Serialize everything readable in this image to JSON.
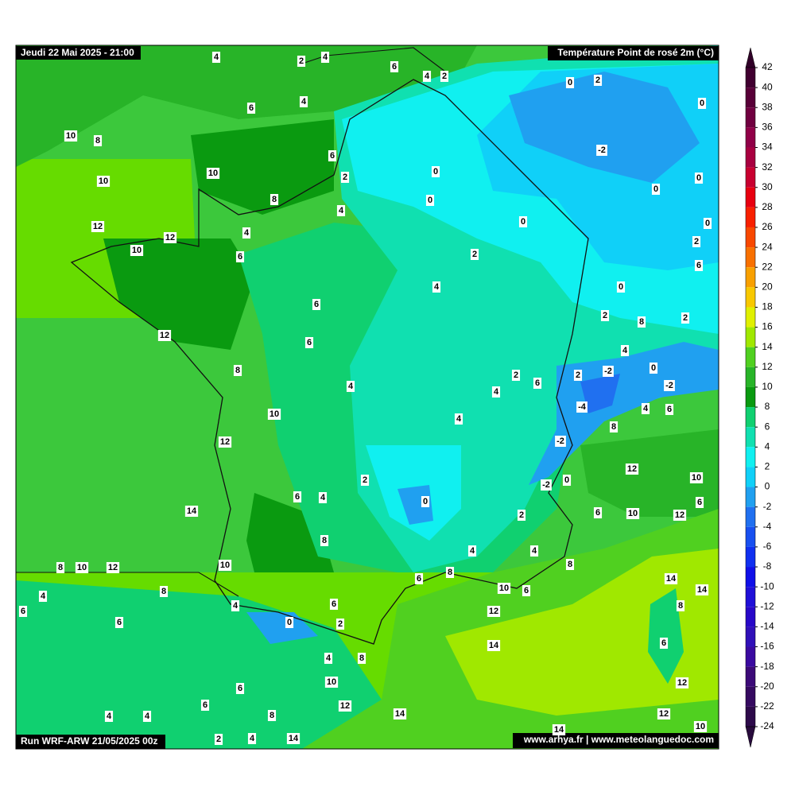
{
  "header": {
    "date": "Jeudi 22 Mai 2025 - 21:00",
    "title": "Température Point de rosé 2m (°C)"
  },
  "footer": {
    "run": "Run WRF-ARW 21/05/2025 00z",
    "source": "www.arhya.fr | www.meteolanguedoc.com"
  },
  "colorbar": {
    "ticks": [
      42,
      40,
      38,
      36,
      34,
      32,
      30,
      28,
      26,
      24,
      22,
      20,
      18,
      16,
      14,
      12,
      10,
      8,
      6,
      4,
      2,
      0,
      -2,
      -4,
      -6,
      -8,
      -10,
      -12,
      -14,
      -16,
      -18,
      -20,
      -22,
      -24
    ],
    "colors": [
      "#300028",
      "#400030",
      "#580038",
      "#700040",
      "#900048",
      "#a80040",
      "#c80030",
      "#e80010",
      "#f82000",
      "#f84800",
      "#f87000",
      "#f8a000",
      "#f8c800",
      "#e0f000",
      "#a0e800",
      "#50d020",
      "#28b428",
      "#0a9a10",
      "#10d070",
      "#10e0b0",
      "#10f0f0",
      "#10d0f8",
      "#20a0f0",
      "#2070f0",
      "#1850f0",
      "#1030f0",
      "#1010e8",
      "#2010d8",
      "#2808c8",
      "#3010b8",
      "#3a0aa0",
      "#3c0a78",
      "#350a60",
      "#2d0a4a",
      "#280a3c"
    ]
  },
  "labels": [
    4,
    2,
    4,
    6,
    4,
    2,
    0,
    2,
    0,
    6,
    4,
    10,
    8,
    -2,
    6,
    10,
    10,
    2,
    0,
    0,
    0,
    8,
    0,
    4,
    0,
    0,
    12,
    12,
    4,
    10,
    2,
    6,
    2,
    6,
    0,
    4,
    6,
    2,
    8,
    2,
    12,
    6,
    4,
    8,
    2,
    -2,
    0,
    2,
    6,
    -2,
    4,
    4,
    -4,
    4,
    6,
    10,
    4,
    8,
    12,
    -2,
    12,
    2,
    -2,
    0,
    10,
    6,
    4,
    0,
    6,
    14,
    2,
    6,
    10,
    12,
    8,
    4,
    4,
    8,
    10,
    8,
    10,
    12,
    8,
    6,
    14,
    10,
    6,
    14,
    8,
    4,
    8,
    6,
    4,
    6,
    12,
    6,
    0,
    2,
    6,
    14,
    4,
    8,
    10,
    12,
    6,
    6,
    12,
    14,
    4,
    4,
    8,
    12,
    10,
    14,
    2,
    4,
    14
  ]
}
